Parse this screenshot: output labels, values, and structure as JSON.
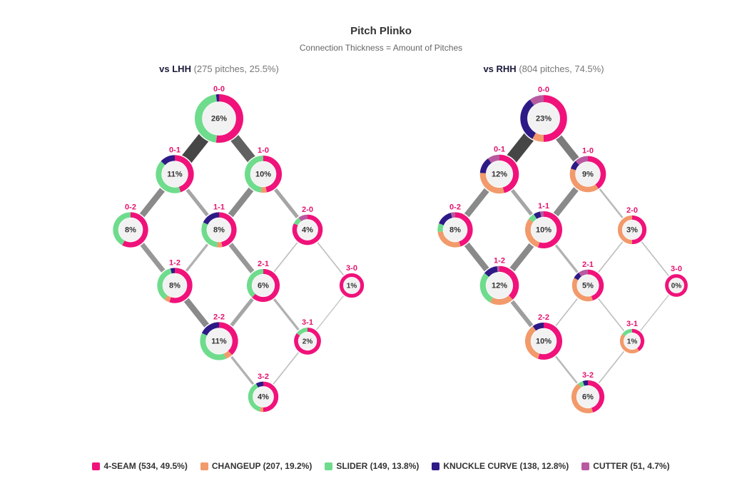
{
  "colors": {
    "4-SEAM": "#f0127a",
    "CHANGEUP": "#f29a6b",
    "SLIDER": "#6edc8c",
    "KNUCKLE CURVE": "#2d1a87",
    "CUTTER": "#b85aa0",
    "connection_strong": "#444444",
    "connection_light": "#cccccc"
  },
  "chart_data": {
    "type": "network",
    "title": "Pitch Plinko",
    "subtitle": "Connection Thickness = Amount of Pitches",
    "legend": [
      {
        "pitch": "4-SEAM",
        "label": "4-SEAM (534, 49.5%)"
      },
      {
        "pitch": "CHANGEUP",
        "label": "CHANGEUP (207, 19.2%)"
      },
      {
        "pitch": "SLIDER",
        "label": "SLIDER (149, 13.8%)"
      },
      {
        "pitch": "KNUCKLE CURVE",
        "label": "KNUCKLE CURVE (138, 12.8%)"
      },
      {
        "pitch": "CUTTER",
        "label": "CUTTER (51, 4.7%)"
      }
    ],
    "pitch_order": [
      "4-SEAM",
      "CHANGEUP",
      "SLIDER",
      "KNUCKLE CURVE",
      "CUTTER"
    ],
    "panels": [
      {
        "name": "vs LHH",
        "detail": "(275 pitches, 25.5%)",
        "nodes": [
          {
            "count": "0-0",
            "pct": "26%",
            "share": 26,
            "mix": [
              0.52,
              0,
              0.46,
              0.02,
              0
            ]
          },
          {
            "count": "0-1",
            "pct": "11%",
            "share": 11,
            "mix": [
              0.45,
              0,
              0.42,
              0.13,
              0
            ]
          },
          {
            "count": "1-0",
            "pct": "10%",
            "share": 10,
            "mix": [
              0.47,
              0.05,
              0.48,
              0,
              0
            ]
          },
          {
            "count": "0-2",
            "pct": "8%",
            "share": 8,
            "mix": [
              0.58,
              0,
              0.42,
              0,
              0
            ]
          },
          {
            "count": "1-1",
            "pct": "8%",
            "share": 8,
            "mix": [
              0.47,
              0.05,
              0.3,
              0.18,
              0
            ]
          },
          {
            "count": "2-0",
            "pct": "4%",
            "share": 4,
            "mix": [
              0.82,
              0,
              0.08,
              0,
              0.1
            ]
          },
          {
            "count": "1-2",
            "pct": "8%",
            "share": 8,
            "mix": [
              0.55,
              0.05,
              0.36,
              0.04,
              0
            ]
          },
          {
            "count": "2-1",
            "pct": "6%",
            "share": 6,
            "mix": [
              0.62,
              0,
              0.38,
              0,
              0
            ]
          },
          {
            "count": "3-0",
            "pct": "1%",
            "share": 1,
            "mix": [
              1,
              0,
              0,
              0,
              0
            ]
          },
          {
            "count": "2-2",
            "pct": "11%",
            "share": 11,
            "mix": [
              0.38,
              0.06,
              0.38,
              0.18,
              0
            ]
          },
          {
            "count": "3-1",
            "pct": "2%",
            "share": 2,
            "mix": [
              0.85,
              0,
              0.15,
              0,
              0
            ]
          },
          {
            "count": "3-2",
            "pct": "4%",
            "share": 4,
            "mix": [
              0.5,
              0.04,
              0.38,
              0.08,
              0
            ]
          }
        ],
        "edges": [
          {
            "from": "0-0",
            "to": "0-1",
            "weight": 10
          },
          {
            "from": "0-0",
            "to": "1-0",
            "weight": 8
          },
          {
            "from": "0-1",
            "to": "0-2",
            "weight": 5
          },
          {
            "from": "0-1",
            "to": "1-1",
            "weight": 3
          },
          {
            "from": "1-0",
            "to": "1-1",
            "weight": 5
          },
          {
            "from": "1-0",
            "to": "2-0",
            "weight": 3
          },
          {
            "from": "0-2",
            "to": "1-2",
            "weight": 4
          },
          {
            "from": "1-1",
            "to": "1-2",
            "weight": 2
          },
          {
            "from": "1-1",
            "to": "2-1",
            "weight": 4
          },
          {
            "from": "2-0",
            "to": "2-1",
            "weight": 1
          },
          {
            "from": "2-0",
            "to": "3-0",
            "weight": 1
          },
          {
            "from": "1-2",
            "to": "2-2",
            "weight": 5
          },
          {
            "from": "2-1",
            "to": "2-2",
            "weight": 3
          },
          {
            "from": "2-1",
            "to": "3-1",
            "weight": 2
          },
          {
            "from": "3-0",
            "to": "3-1",
            "weight": 0.8
          },
          {
            "from": "2-2",
            "to": "3-2",
            "weight": 2
          },
          {
            "from": "3-1",
            "to": "3-2",
            "weight": 1
          }
        ]
      },
      {
        "name": "vs RHH",
        "detail": "(804 pitches, 74.5%)",
        "nodes": [
          {
            "count": "0-0",
            "pct": "23%",
            "share": 23,
            "mix": [
              0.5,
              0.08,
              0,
              0.32,
              0.1
            ]
          },
          {
            "count": "0-1",
            "pct": "12%",
            "share": 12,
            "mix": [
              0.46,
              0.3,
              0,
              0.14,
              0.1
            ]
          },
          {
            "count": "1-0",
            "pct": "9%",
            "share": 9,
            "mix": [
              0.4,
              0.4,
              0,
              0.08,
              0.12
            ]
          },
          {
            "count": "0-2",
            "pct": "8%",
            "share": 8,
            "mix": [
              0.45,
              0.28,
              0.08,
              0.15,
              0.04
            ]
          },
          {
            "count": "1-1",
            "pct": "10%",
            "share": 10,
            "mix": [
              0.55,
              0.3,
              0.06,
              0.06,
              0.03
            ]
          },
          {
            "count": "2-0",
            "pct": "3%",
            "share": 3,
            "mix": [
              0.5,
              0.5,
              0,
              0,
              0
            ]
          },
          {
            "count": "1-2",
            "pct": "12%",
            "share": 12,
            "mix": [
              0.38,
              0.2,
              0.28,
              0.12,
              0.02
            ]
          },
          {
            "count": "2-1",
            "pct": "5%",
            "share": 5,
            "mix": [
              0.45,
              0.38,
              0,
              0.07,
              0.1
            ]
          },
          {
            "count": "3-0",
            "pct": "0%",
            "share": 0.5,
            "mix": [
              1,
              0,
              0,
              0,
              0
            ]
          },
          {
            "count": "2-2",
            "pct": "10%",
            "share": 10,
            "mix": [
              0.55,
              0.35,
              0,
              0.1,
              0
            ]
          },
          {
            "count": "3-1",
            "pct": "1%",
            "share": 1,
            "mix": [
              0.4,
              0.45,
              0.15,
              0,
              0
            ]
          },
          {
            "count": "3-2",
            "pct": "6%",
            "share": 6,
            "mix": [
              0.45,
              0.45,
              0.05,
              0.05,
              0
            ]
          }
        ],
        "edges": [
          {
            "from": "0-0",
            "to": "0-1",
            "weight": 10
          },
          {
            "from": "0-0",
            "to": "1-0",
            "weight": 6
          },
          {
            "from": "0-1",
            "to": "0-2",
            "weight": 5
          },
          {
            "from": "0-1",
            "to": "1-1",
            "weight": 3
          },
          {
            "from": "1-0",
            "to": "1-1",
            "weight": 5
          },
          {
            "from": "1-0",
            "to": "2-0",
            "weight": 1.5
          },
          {
            "from": "0-2",
            "to": "1-2",
            "weight": 5
          },
          {
            "from": "1-1",
            "to": "1-2",
            "weight": 5
          },
          {
            "from": "1-1",
            "to": "2-1",
            "weight": 2
          },
          {
            "from": "2-0",
            "to": "2-1",
            "weight": 1
          },
          {
            "from": "2-0",
            "to": "3-0",
            "weight": 1
          },
          {
            "from": "1-2",
            "to": "2-2",
            "weight": 3.5
          },
          {
            "from": "2-1",
            "to": "2-2",
            "weight": 1
          },
          {
            "from": "2-1",
            "to": "3-1",
            "weight": 1
          },
          {
            "from": "3-0",
            "to": "3-1",
            "weight": 0.8
          },
          {
            "from": "2-2",
            "to": "3-2",
            "weight": 1.5
          },
          {
            "from": "3-1",
            "to": "3-2",
            "weight": 1
          }
        ]
      }
    ]
  }
}
